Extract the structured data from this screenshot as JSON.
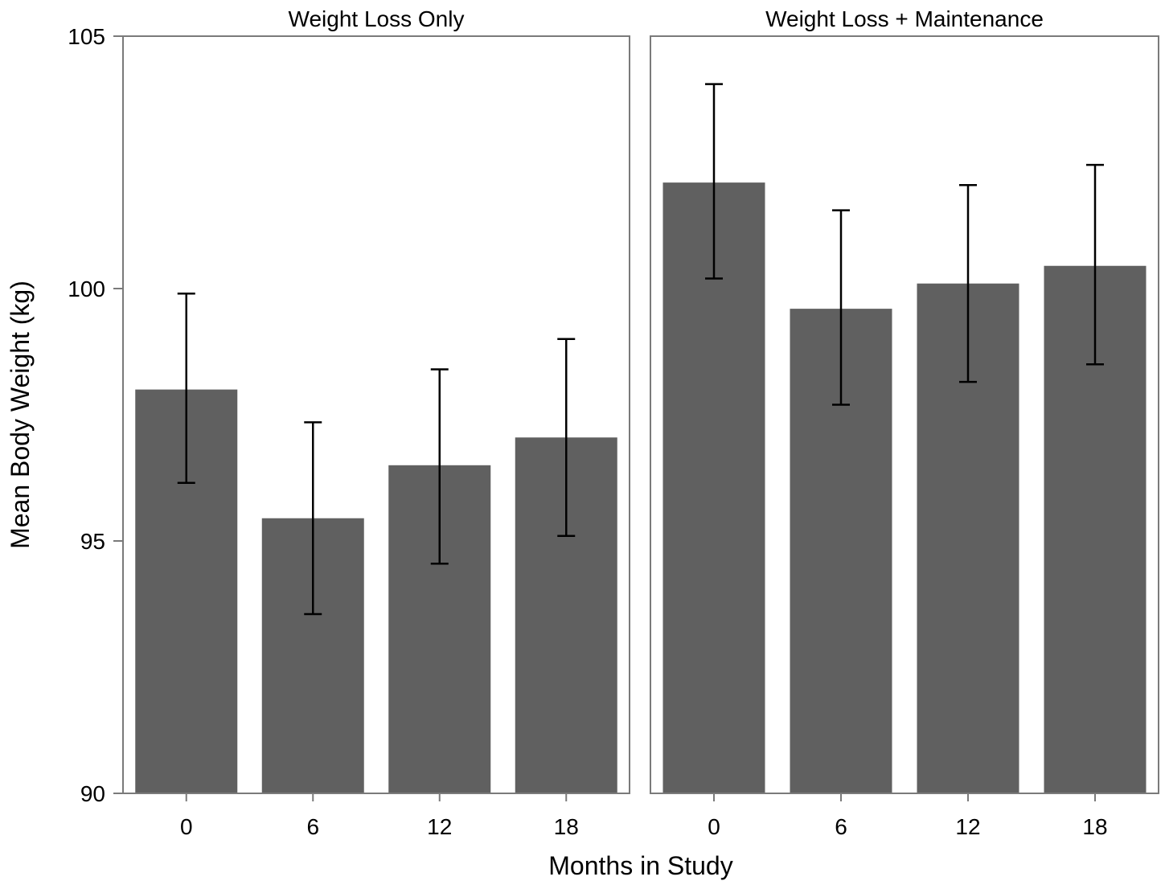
{
  "chart_data": {
    "type": "bar",
    "ylabel": "Mean Body Weight (kg)",
    "xlabel": "Months in Study",
    "ylim": [
      90,
      105
    ],
    "yticks": [
      90,
      95,
      100,
      105
    ],
    "grid": false,
    "bar_color": "#606060",
    "error_bar_color": "#000000",
    "frame_color": "#7a7a7a",
    "panels": [
      {
        "title": "Weight Loss Only",
        "categories": [
          "0",
          "6",
          "12",
          "18"
        ],
        "values": [
          98.0,
          95.45,
          96.5,
          97.05
        ],
        "error_low": [
          96.15,
          93.55,
          94.55,
          95.1
        ],
        "error_high": [
          99.9,
          97.35,
          98.4,
          99.0
        ]
      },
      {
        "title": "Weight Loss + Maintenance",
        "categories": [
          "0",
          "6",
          "12",
          "18"
        ],
        "values": [
          102.1,
          99.6,
          100.1,
          100.45
        ],
        "error_low": [
          100.2,
          97.7,
          98.15,
          98.5
        ],
        "error_high": [
          104.05,
          101.55,
          102.05,
          102.45
        ]
      }
    ]
  }
}
